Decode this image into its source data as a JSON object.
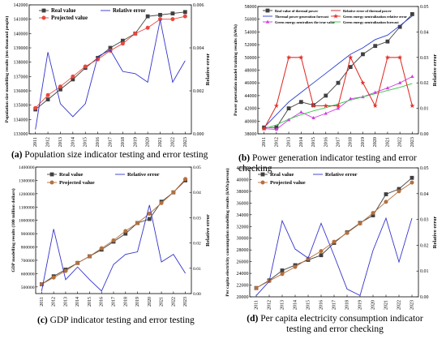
{
  "chart_data": [
    {
      "id": "a",
      "type": "line",
      "caption_letter": "(a)",
      "caption_text": "Population size indicator testing and error testing",
      "ylabel_left": "Population size modelling results (ten thousand people)",
      "ylabel_right": "Relative error",
      "x": [
        2011,
        2012,
        2013,
        2014,
        2015,
        2016,
        2017,
        2018,
        2019,
        2020,
        2021,
        2022,
        2023
      ],
      "ylim_left": [
        133000,
        142000
      ],
      "yticks_left": [
        133000,
        134000,
        135000,
        136000,
        137000,
        138000,
        139000,
        140000,
        141000,
        142000
      ],
      "ylim_right": [
        0,
        0.006
      ],
      "yticks_right": [
        0,
        0.002,
        0.004,
        0.006
      ],
      "yticks_right_labels": [
        "0.000",
        "0.002",
        "0.004",
        "0.006"
      ],
      "legend": [
        {
          "name": "Real value",
          "color": "#404040",
          "marker": "square"
        },
        {
          "name": "Relative error",
          "color": "#3333cc",
          "marker": "none"
        },
        {
          "name": "Projected value",
          "color": "#e8483e",
          "marker": "circle"
        }
      ],
      "series": [
        {
          "name": "Real value",
          "axis": "left",
          "color": "#404040",
          "marker": "square",
          "values": [
            134700,
            135400,
            136100,
            136800,
            137600,
            138300,
            139000,
            139500,
            140000,
            141200,
            141300,
            141400,
            141500
          ]
        },
        {
          "name": "Projected value",
          "axis": "left",
          "color": "#e8483e",
          "marker": "circle",
          "values": [
            134800,
            135700,
            136300,
            137000,
            137700,
            138200,
            138800,
            139300,
            140000,
            140400,
            141000,
            141000,
            141200
          ]
        },
        {
          "name": "Relative error",
          "axis": "right",
          "color": "#3333cc",
          "marker": "none",
          "values": [
            0.0002,
            0.0038,
            0.0014,
            0.0008,
            0.0014,
            0.0036,
            0.0039,
            0.0029,
            0.0028,
            0.0024,
            0.0053,
            0.0024,
            0.0034
          ]
        }
      ]
    },
    {
      "id": "b",
      "type": "line",
      "caption_letter": "(b)",
      "caption_text": "Power generation indicator testing and error checking",
      "ylabel_left": "Power generation model training results (kWh)",
      "ylabel_right": "Relative error",
      "x": [
        2011,
        2012,
        2013,
        2014,
        2015,
        2016,
        2017,
        2018,
        2019,
        2020,
        2021,
        2022,
        2023
      ],
      "ylim_left": [
        38000,
        58000
      ],
      "yticks_left": [
        38000,
        40000,
        42000,
        44000,
        46000,
        48000,
        50000,
        52000,
        54000,
        56000,
        58000
      ],
      "ylim_right": [
        0,
        0.05
      ],
      "yticks_right": [
        0,
        0.01,
        0.02,
        0.03,
        0.04,
        0.05
      ],
      "yticks_right_labels": [
        "0.00",
        "0.01",
        "0.02",
        "0.03",
        "0.04",
        "0.05"
      ],
      "legend": [
        {
          "name": "Real value of thermal power",
          "color": "#404040",
          "marker": "square"
        },
        {
          "name": "Relative error of thermal power",
          "color": "#c81e1e",
          "marker": "none"
        },
        {
          "name": "Thermal power generation forecast",
          "color": "#2a3fd1",
          "marker": "none"
        },
        {
          "name": "Green energy neutralization relative error",
          "color": "#e3312a",
          "marker": "star"
        },
        {
          "name": "Green energy neutralizes the true value",
          "color": "#d13de0",
          "marker": "triangle"
        },
        {
          "name": "Green energy neutralization forecast",
          "color": "#35c449",
          "marker": "none"
        }
      ],
      "series": [
        {
          "name": "Real value of thermal power",
          "axis": "left",
          "color": "#404040",
          "marker": "square",
          "values": [
            39000,
            39000,
            42000,
            43000,
            42500,
            44000,
            46000,
            48500,
            50500,
            51800,
            52500,
            54800,
            56800
          ]
        },
        {
          "name": "Thermal power generation forecast",
          "axis": "left",
          "color": "#2a3fd1",
          "marker": "none",
          "values": [
            39000,
            41000,
            43000,
            44500,
            46000,
            47500,
            49000,
            50500,
            51500,
            52800,
            53500,
            55000,
            56500
          ]
        },
        {
          "name": "Green energy neutralizes the true value",
          "axis": "left",
          "color": "#d13de0",
          "marker": "triangle",
          "values": [
            38800,
            38700,
            40200,
            41400,
            40500,
            41200,
            42000,
            43500,
            43800,
            44500,
            45200,
            46000,
            47000
          ]
        },
        {
          "name": "Green energy neutralization forecast",
          "axis": "left",
          "color": "#35c449",
          "marker": "none",
          "values": [
            38800,
            39400,
            40300,
            41000,
            41600,
            42100,
            42700,
            43300,
            43800,
            44300,
            44800,
            45300,
            45900
          ]
        },
        {
          "name": "Relative error of thermal power",
          "axis": "right",
          "color": "#c81e1e",
          "marker": "none",
          "values": [
            0.002,
            0.011,
            0.03,
            0.03,
            0.011,
            0.011,
            0.011,
            0.03,
            0.02,
            0.011,
            0.03,
            0.03,
            0.011
          ]
        },
        {
          "name": "Green energy neutralization relative error",
          "axis": "right",
          "color": "#e3312a",
          "marker": "star",
          "values": [
            0.002,
            0.011,
            0.03,
            0.03,
            0.011,
            0.011,
            0.011,
            0.03,
            0.02,
            0.011,
            0.03,
            0.03,
            0.011
          ]
        }
      ]
    },
    {
      "id": "c",
      "type": "line",
      "caption_letter": "(c)",
      "caption_text": "GDP indicator testing and error testing",
      "ylabel_left": "GDP modelling results (100 million dollars)",
      "ylabel_right": "Relative error",
      "x": [
        2011,
        2012,
        2013,
        2014,
        2015,
        2016,
        2017,
        2018,
        2019,
        2020,
        2021,
        2022,
        2023
      ],
      "ylim_left": [
        450000,
        1400000
      ],
      "yticks_left": [
        500000,
        600000,
        700000,
        800000,
        900000,
        1000000,
        1100000,
        1200000,
        1300000,
        1400000
      ],
      "ylim_right": [
        0,
        0.05
      ],
      "yticks_right": [
        0,
        0.01,
        0.02,
        0.03,
        0.04,
        0.05
      ],
      "yticks_right_labels": [
        "0.00",
        "0.01",
        "0.02",
        "0.03",
        "0.04",
        "0.05"
      ],
      "legend": [
        {
          "name": "Real value",
          "color": "#404040",
          "marker": "square"
        },
        {
          "name": "Relative error",
          "color": "#3333cc",
          "marker": "none"
        },
        {
          "name": "Projected value",
          "color": "#b5703d",
          "marker": "circle"
        }
      ],
      "series": [
        {
          "name": "Real value",
          "axis": "left",
          "color": "#404040",
          "marker": "square",
          "values": [
            520000,
            580000,
            630000,
            680000,
            730000,
            780000,
            840000,
            900000,
            980000,
            1010000,
            1140000,
            1210000,
            1300000
          ]
        },
        {
          "name": "Projected value",
          "axis": "left",
          "color": "#b5703d",
          "marker": "circle",
          "values": [
            520000,
            570000,
            620000,
            680000,
            730000,
            790000,
            850000,
            920000,
            980000,
            1050000,
            1130000,
            1210000,
            1310000
          ]
        },
        {
          "name": "Relative error",
          "axis": "right",
          "color": "#3333cc",
          "marker": "none",
          "values": [
            0.001,
            0.0255,
            0.0055,
            0.0105,
            0.0055,
            0.001,
            0.0115,
            0.0155,
            0.0165,
            0.035,
            0.0125,
            0.0155,
            0.008
          ]
        }
      ]
    },
    {
      "id": "d",
      "type": "line",
      "caption_letter": "(d)",
      "caption_text": "Per capita electricity consumption indicator testing and error checking",
      "ylabel_left": "Per capita electricity consumption modelling results (kWh/person)",
      "ylabel_right": "Relative error",
      "x": [
        2011,
        2012,
        2013,
        2014,
        2015,
        2016,
        2017,
        2018,
        2019,
        2020,
        2021,
        2022,
        2023
      ],
      "ylim_left": [
        20000,
        42000
      ],
      "yticks_left": [
        20000,
        22000,
        24000,
        26000,
        28000,
        30000,
        32000,
        34000,
        36000,
        38000,
        40000,
        42000
      ],
      "ylim_right": [
        0,
        0.05
      ],
      "yticks_right": [
        0,
        0.01,
        0.02,
        0.03,
        0.04,
        0.05
      ],
      "yticks_right_labels": [
        "0.00",
        "0.01",
        "0.02",
        "0.03",
        "0.04",
        "0.05"
      ],
      "legend": [
        {
          "name": "Real value",
          "color": "#404040",
          "marker": "square"
        },
        {
          "name": "Relative error",
          "color": "#3333cc",
          "marker": "none"
        },
        {
          "name": "Projected value",
          "color": "#b5703d",
          "marker": "circle"
        }
      ],
      "series": [
        {
          "name": "Real value",
          "axis": "left",
          "color": "#404040",
          "marker": "square",
          "values": [
            21500,
            22800,
            24500,
            25400,
            26300,
            27100,
            29200,
            31000,
            32600,
            33900,
            37500,
            38400,
            40300
          ]
        },
        {
          "name": "Projected value",
          "axis": "left",
          "color": "#b5703d",
          "marker": "circle",
          "values": [
            21500,
            22700,
            23900,
            25100,
            26500,
            27800,
            29400,
            30900,
            32500,
            34300,
            36200,
            38000,
            39500
          ]
        },
        {
          "name": "Relative error",
          "axis": "right",
          "color": "#3333cc",
          "marker": "none",
          "values": [
            0.0005,
            0.006,
            0.0295,
            0.0185,
            0.015,
            0.0285,
            0.016,
            0.003,
            0.0005,
            0.018,
            0.0305,
            0.0135,
            0.0305
          ]
        }
      ]
    }
  ]
}
